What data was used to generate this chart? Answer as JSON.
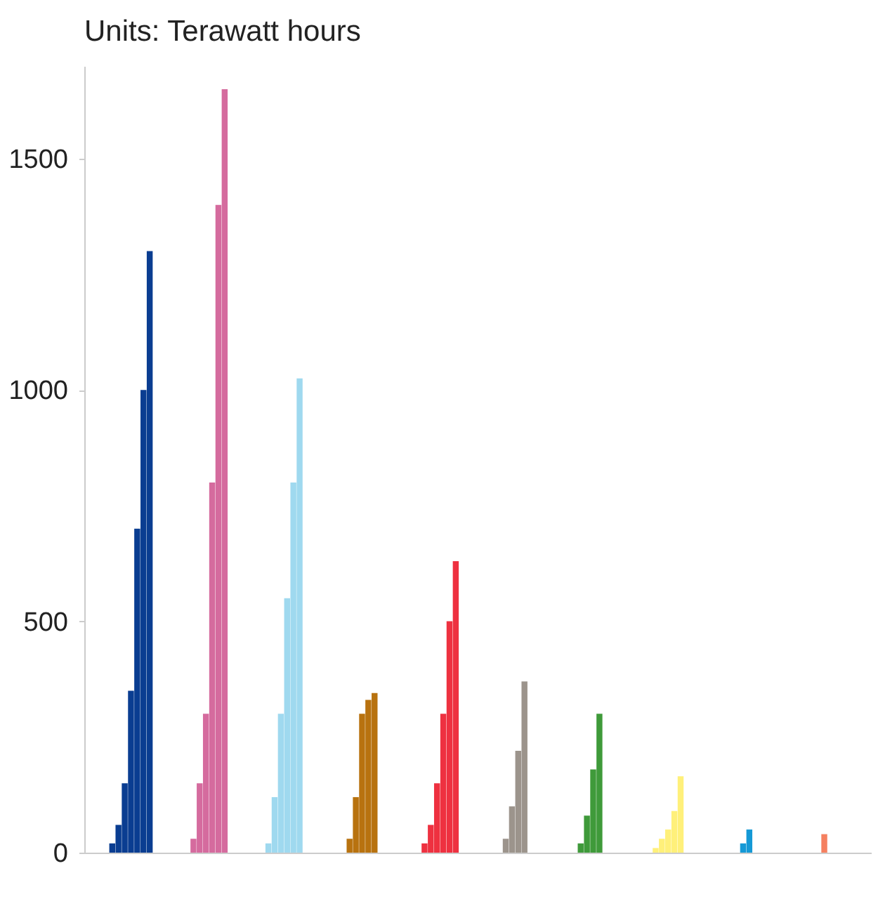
{
  "chart_data": {
    "type": "bar",
    "title": "Units: Terawatt hours",
    "categories": [
      null,
      null,
      null,
      null,
      null,
      null,
      null,
      null,
      null,
      null,
      null,
      null,
      null,
      null,
      null,
      null,
      null,
      null,
      null,
      null,
      null,
      null,
      null,
      null,
      null,
      null,
      null,
      null,
      null,
      null,
      null,
      null,
      null,
      null,
      null,
      null,
      null,
      null,
      null,
      null,
      null,
      null,
      null,
      null,
      null,
      null,
      null,
      null,
      null,
      null,
      null,
      null,
      null,
      null,
      null,
      null,
      null,
      null,
      null,
      null,
      null,
      null,
      null,
      null,
      null,
      null,
      null,
      null,
      null,
      null,
      null,
      null,
      null,
      null,
      null,
      null,
      null,
      null,
      null,
      null,
      null,
      null,
      null,
      null,
      null,
      null,
      null,
      null,
      null,
      null,
      null,
      null,
      null,
      null,
      null,
      null,
      null,
      null,
      null,
      null,
      null,
      null,
      null,
      null,
      null,
      null,
      null,
      null,
      null,
      null,
      null,
      null,
      null,
      null,
      null,
      null,
      null,
      null,
      null,
      null,
      null,
      null,
      null,
      null,
      null,
      null
    ],
    "values": [
      null,
      null,
      null,
      null,
      20,
      60,
      150,
      350,
      700,
      1000,
      1300,
      null,
      null,
      null,
      null,
      null,
      null,
      30,
      150,
      300,
      800,
      1400,
      1650,
      null,
      null,
      null,
      null,
      null,
      null,
      20,
      120,
      300,
      550,
      800,
      1025,
      null,
      null,
      null,
      null,
      null,
      null,
      null,
      30,
      120,
      300,
      330,
      345,
      null,
      null,
      null,
      null,
      null,
      null,
      null,
      20,
      60,
      150,
      300,
      500,
      630,
      null,
      null,
      null,
      null,
      null,
      null,
      null,
      30,
      100,
      220,
      370,
      null,
      null,
      null,
      null,
      null,
      null,
      null,
      null,
      20,
      80,
      180,
      300,
      null,
      null,
      null,
      null,
      null,
      null,
      null,
      null,
      10,
      30,
      50,
      90,
      165,
      null,
      null,
      null,
      null,
      null,
      null,
      null,
      null,
      null,
      20,
      50,
      null,
      null,
      null,
      null,
      null,
      null,
      null,
      null,
      null,
      null,
      null,
      40,
      null,
      null,
      null,
      null,
      null,
      null,
      null
    ],
    "colors": [
      null,
      null,
      null,
      null,
      "#0a3d91",
      "#0a3d91",
      "#0a3d91",
      "#0a3d91",
      "#0a3d91",
      "#0a3d91",
      "#0a3d91",
      null,
      null,
      null,
      null,
      null,
      null,
      "#d56b9e",
      "#d56b9e",
      "#d56b9e",
      "#d56b9e",
      "#d56b9e",
      "#d56b9e",
      null,
      null,
      null,
      null,
      null,
      null,
      "#9fd9ef",
      "#9fd9ef",
      "#9fd9ef",
      "#9fd9ef",
      "#9fd9ef",
      "#9fd9ef",
      null,
      null,
      null,
      null,
      null,
      null,
      null,
      "#b8720f",
      "#b8720f",
      "#b8720f",
      "#b8720f",
      "#b8720f",
      null,
      null,
      null,
      null,
      null,
      null,
      null,
      "#ee3140",
      "#ee3140",
      "#ee3140",
      "#ee3140",
      "#ee3140",
      "#ee3140",
      null,
      null,
      null,
      null,
      null,
      null,
      null,
      "#9c948c",
      "#9c948c",
      "#9c948c",
      "#9c948c",
      null,
      null,
      null,
      null,
      null,
      null,
      null,
      null,
      "#3f9a3a",
      "#3f9a3a",
      "#3f9a3a",
      "#3f9a3a",
      null,
      null,
      null,
      null,
      null,
      null,
      null,
      null,
      "#fff07a",
      "#fff07a",
      "#fff07a",
      "#fff07a",
      "#fff07a",
      null,
      null,
      null,
      null,
      null,
      null,
      null,
      null,
      null,
      "#1599d6",
      "#1599d6",
      null,
      null,
      null,
      null,
      null,
      null,
      null,
      null,
      null,
      null,
      null,
      "#f58060",
      null,
      null,
      null,
      null,
      null,
      null,
      null
    ],
    "ylim": [
      0,
      1700
    ],
    "yticks": [
      0,
      500,
      1000,
      1500
    ],
    "grid": false,
    "tick_labels": "y"
  }
}
